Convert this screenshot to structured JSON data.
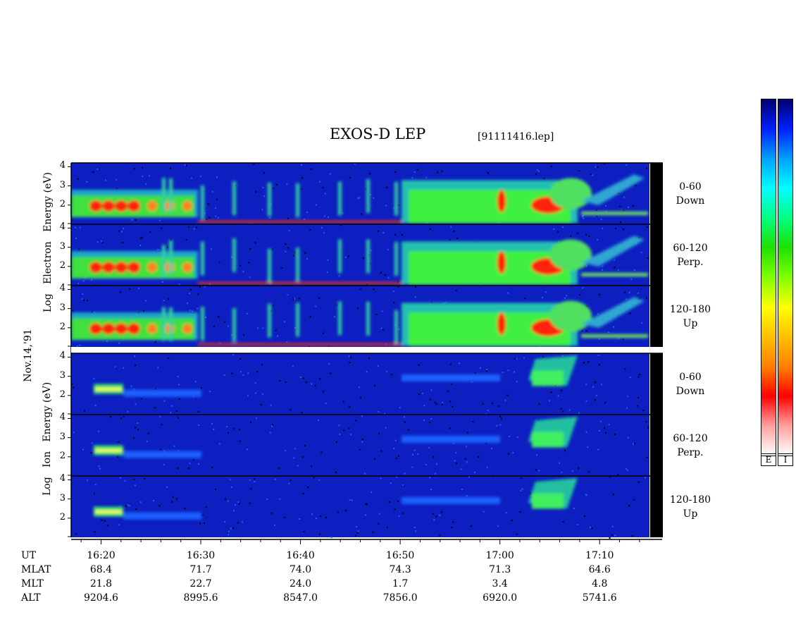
{
  "header": {
    "title": "EXOS-D LEP",
    "file": "[91111416.lep]"
  },
  "colors": {
    "background": "#0d1fc0",
    "black_band": "#000000"
  },
  "side_labels": {
    "electron": [
      "Log",
      "Electron",
      "Energy",
      "(eV)"
    ],
    "ion": [
      "Log",
      "Ion",
      "Energy",
      "(eV)"
    ],
    "date": "Nov.14,'91"
  },
  "panels": [
    {
      "group": "electron",
      "range": "0-60",
      "dir": "Down"
    },
    {
      "group": "electron",
      "range": "60-120",
      "dir": "Perp."
    },
    {
      "group": "electron",
      "range": "120-180",
      "dir": "Up"
    },
    {
      "group": "ion",
      "range": "0-60",
      "dir": "Down"
    },
    {
      "group": "ion",
      "range": "60-120",
      "dir": "Perp."
    },
    {
      "group": "ion",
      "range": "120-180",
      "dir": "Up"
    }
  ],
  "y_ticks": [
    "4",
    "3",
    "2"
  ],
  "colorbar": {
    "labels": [
      "E",
      "I"
    ],
    "stops": [
      "#000070",
      "#0020ff",
      "#00a0ff",
      "#00ffff",
      "#00ff80",
      "#20e000",
      "#80ff00",
      "#ffff00",
      "#ffc000",
      "#ff8000",
      "#ff0000",
      "#ffa0a0",
      "#ffffff"
    ]
  },
  "chart_data": {
    "type": "heatmap",
    "title": "EXOS-D LEP",
    "xlabel": "UT",
    "ylabel": "Log Energy (eV)",
    "x_ticks": [
      "16:20",
      "16:30",
      "16:40",
      "16:50",
      "17:00",
      "17:10"
    ],
    "ylim": [
      1,
      4.2
    ],
    "ephemeris": {
      "rows": [
        "UT",
        "MLAT",
        "MLT",
        "ALT"
      ],
      "MLAT": [
        "68.4",
        "71.7",
        "74.0",
        "74.3",
        "71.3",
        "64.6"
      ],
      "MLT": [
        "21.8",
        "22.7",
        "24.0",
        "1.7",
        "3.4",
        "4.8"
      ],
      "ALT": [
        "9204.6",
        "8995.6",
        "8547.0",
        "7856.0",
        "6920.0",
        "5741.6"
      ]
    },
    "features": [
      {
        "group": "electron",
        "t_start": "16:21",
        "t_end": "16:29",
        "log_e": [
          1.6,
          2.4
        ],
        "level": "high"
      },
      {
        "group": "electron",
        "t_start": "17:01",
        "t_end": "17:05",
        "log_e": [
          1.5,
          2.5
        ],
        "level": "high"
      },
      {
        "group": "ion",
        "t_start": "16:22",
        "t_end": "16:24",
        "log_e": [
          2.2,
          2.6
        ],
        "level": "medium"
      },
      {
        "group": "ion",
        "t_start": "17:02",
        "t_end": "17:05",
        "log_e": [
          2.5,
          3.8
        ],
        "level": "medium"
      }
    ]
  }
}
